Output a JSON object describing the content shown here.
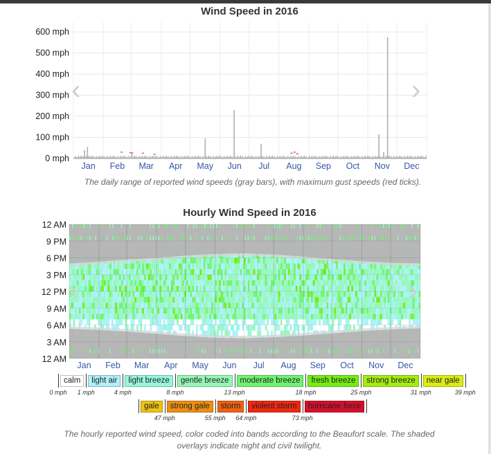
{
  "chart_data": [
    {
      "type": "bar",
      "title": "Wind Speed in 2016",
      "y_ticks": [
        "0 mph",
        "100 mph",
        "200 mph",
        "300 mph",
        "400 mph",
        "500 mph",
        "600 mph"
      ],
      "ylim": [
        0,
        620
      ],
      "grid": true,
      "months": [
        "Jan",
        "Feb",
        "Mar",
        "Apr",
        "May",
        "Jun",
        "Jul",
        "Aug",
        "Sep",
        "Oct",
        "Nov",
        "Dec"
      ],
      "series": [
        {
          "name": "daily range",
          "color": "#b0b0b0",
          "spikes": [
            {
              "day": 11,
              "max": 40
            },
            {
              "day": 14,
              "max": 55
            },
            {
              "day": 60,
              "max": 22
            },
            {
              "day": 136,
              "max": 95
            },
            {
              "day": 166,
              "max": 230
            },
            {
              "day": 194,
              "max": 70
            },
            {
              "day": 316,
              "max": 115
            },
            {
              "day": 325,
              "max": 575
            },
            {
              "day": 321,
              "max": 30
            }
          ],
          "baseline_max": 15
        },
        {
          "name": "maximum gust",
          "color": "#e0506a",
          "gusts": [
            {
              "day": 50,
              "max": 30
            },
            {
              "day": 59,
              "max": 28
            },
            {
              "day": 61,
              "max": 26
            },
            {
              "day": 72,
              "max": 25
            },
            {
              "day": 84,
              "max": 20
            },
            {
              "day": 226,
              "max": 25
            },
            {
              "day": 229,
              "max": 30
            },
            {
              "day": 232,
              "max": 22
            }
          ]
        }
      ],
      "caption": "The daily range of reported wind speeds (gray bars), with maximum gust speeds (red ticks)."
    },
    {
      "type": "heatmap",
      "title": "Hourly Wind Speed in 2016",
      "y_ticks": [
        "12 AM",
        "9 PM",
        "6 PM",
        "3 PM",
        "12 PM",
        "9 AM",
        "6 AM",
        "3 AM",
        "12 AM"
      ],
      "months": [
        "Jan",
        "Feb",
        "Mar",
        "Apr",
        "May",
        "Jun",
        "Jul",
        "Aug",
        "Sep",
        "Oct",
        "Nov",
        "Dec"
      ],
      "night_color": "#b3b3b3",
      "twilight_color": "#d6d6d6",
      "sunrise_hours": [
        5.3,
        5.1,
        4.8,
        4.4,
        4.0,
        3.7,
        3.6,
        3.8,
        4.1,
        4.5,
        4.9,
        5.2,
        5.4
      ],
      "sunset_hours": [
        17.0,
        17.3,
        17.7,
        18.0,
        18.4,
        18.7,
        18.8,
        18.6,
        18.2,
        17.8,
        17.4,
        17.1,
        17.0
      ],
      "beaufort": [
        {
          "label": "calm",
          "color": "#ffffff",
          "min": 0
        },
        {
          "label": "light air",
          "color": "#aef1f9",
          "min": 1
        },
        {
          "label": "light breeze",
          "color": "#96f7dc",
          "min": 4
        },
        {
          "label": "gentle breeze",
          "color": "#96f7b4",
          "min": 8
        },
        {
          "label": "moderate breeze",
          "color": "#6ff46f",
          "min": 13
        },
        {
          "label": "fresh breeze",
          "color": "#73ed12",
          "min": 18
        },
        {
          "label": "strong breeze",
          "color": "#a4ed12",
          "min": 25
        },
        {
          "label": "near gale",
          "color": "#daed12",
          "min": 31
        },
        {
          "label": "gale",
          "color": "#edc212",
          "min": 39
        },
        {
          "label": "strong gale",
          "color": "#ed8f12",
          "min": 47
        },
        {
          "label": "storm",
          "color": "#ed6312",
          "min": 55
        },
        {
          "label": "violent storm",
          "color": "#ed2912",
          "min": 64
        },
        {
          "label": "hurricane force",
          "color": "#d5102d",
          "min": 73
        }
      ],
      "legend_row1": {
        "labels": [
          "calm",
          "light air",
          "light breeze",
          "gentle breeze",
          "moderate breeze",
          "fresh breeze",
          "strong breeze",
          "near gale"
        ],
        "boundaries": [
          "0 mph",
          "1 mph",
          "4 mph",
          "8 mph",
          "13 mph",
          "18 mph",
          "25 mph",
          "31 mph",
          "39 mph"
        ]
      },
      "legend_row2": {
        "labels": [
          "gale",
          "strong gale",
          "storm",
          "violent storm",
          "hurricane force"
        ],
        "boundaries": [
          "47 mph",
          "55 mph",
          "64 mph",
          "73 mph"
        ]
      },
      "caption": "The hourly reported wind speed, color coded into bands according to the Beaufort scale. The shaded overlays indicate night and civil twilight."
    }
  ]
}
